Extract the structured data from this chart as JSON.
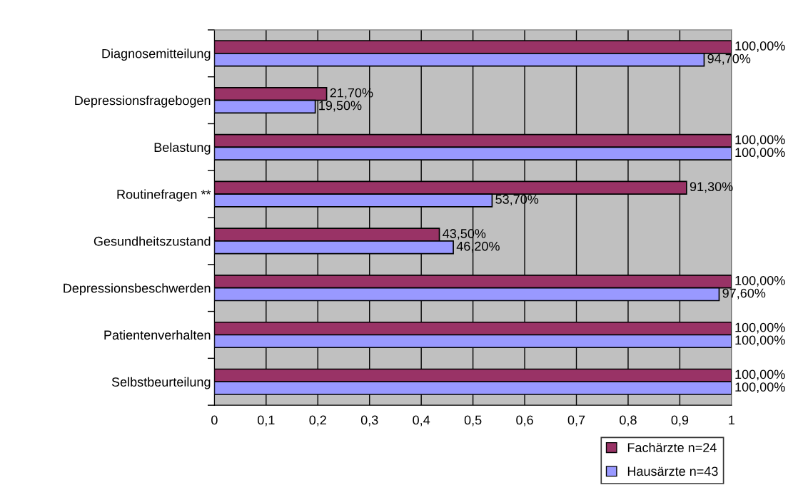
{
  "chart_data": {
    "type": "bar",
    "orientation": "horizontal",
    "categories": [
      "Diagnosemitteilung",
      "Depressionsfragebogen",
      "Belastung",
      "Routinefragen **",
      "Gesundheitszustand",
      "Depressionsbeschwerden",
      "Patientenverhalten",
      "Selbstbeurteilung"
    ],
    "series": [
      {
        "name": "Fachärzte n=24",
        "color": "#993366",
        "values": [
          1,
          0.217,
          1,
          0.913,
          0.435,
          1,
          1,
          1
        ],
        "value_labels": [
          "100,00%",
          "21,70%",
          "100,00%",
          "91,30%",
          "43,50%",
          "100,00%",
          "100,00%",
          "100,00%"
        ]
      },
      {
        "name": "Hausärzte n=43",
        "color": "#9999ff",
        "values": [
          0.947,
          0.195,
          1,
          0.537,
          0.462,
          0.976,
          1,
          1
        ],
        "value_labels": [
          "94,70%",
          "19,50%",
          "100,00%",
          "53,70%",
          "46,20%",
          "97,60%",
          "100,00%",
          "100,00%"
        ]
      }
    ],
    "xlim": [
      0,
      1
    ],
    "xticks": [
      0,
      {
        "value": 0.1,
        "label": "0,1"
      },
      {
        "value": 0.2,
        "label": "0,2"
      },
      {
        "value": 0.3,
        "label": "0,3"
      },
      {
        "value": 0.4,
        "label": "0,4"
      },
      {
        "value": 0.5,
        "label": "0,5"
      },
      {
        "value": 0.6,
        "label": "0,6"
      },
      {
        "value": 0.7,
        "label": "0,7"
      },
      {
        "value": 0.8,
        "label": "0,8"
      },
      {
        "value": 0.9,
        "label": "0,9"
      },
      1
    ],
    "grid": "x",
    "legend": "bottom right"
  }
}
